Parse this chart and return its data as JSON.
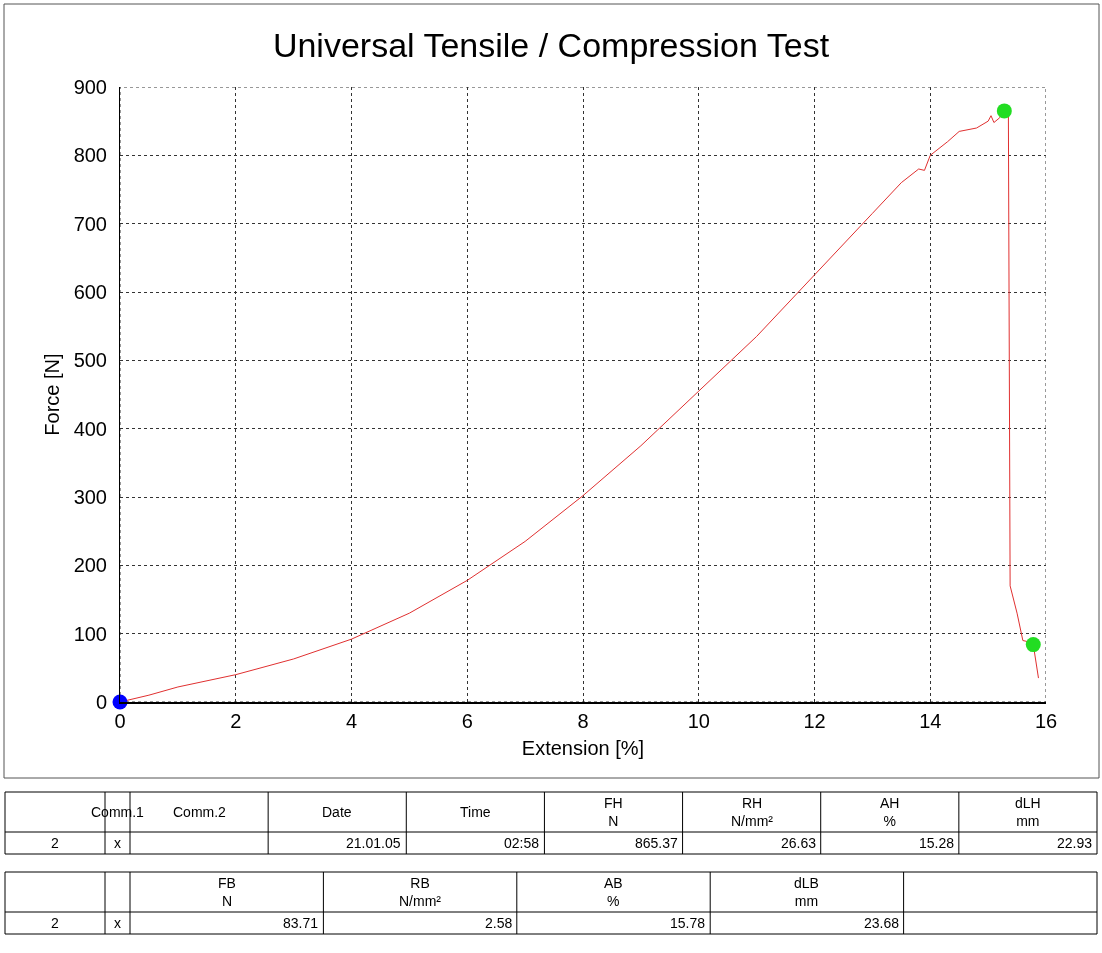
{
  "chart_data": {
    "type": "line",
    "title": "Universal Tensile / Compression Test",
    "xlabel": "Extension [%]",
    "ylabel": "Force [N]",
    "xlim": [
      0,
      16
    ],
    "xticks": [
      0,
      2,
      4,
      6,
      8,
      10,
      12,
      14,
      16
    ],
    "ylim": [
      0,
      900
    ],
    "yticks": [
      0,
      100,
      200,
      300,
      400,
      500,
      600,
      700,
      800,
      900
    ],
    "grid": true,
    "series": [
      {
        "color": "#e03030",
        "marker": "none",
        "x": [
          0,
          0.5,
          1,
          2,
          3,
          4,
          5,
          6,
          7,
          8,
          9,
          10,
          11,
          12,
          13,
          13.5,
          13.8,
          13.9,
          14,
          14.3,
          14.5,
          14.8,
          15,
          15.05,
          15.1,
          15.2,
          15.28,
          15.35,
          15.38,
          15.5,
          15.6,
          15.7,
          15.78,
          15.87
        ],
        "values": [
          0,
          10,
          22,
          40,
          63,
          92,
          130,
          178,
          235,
          302,
          375,
          455,
          535,
          625,
          715,
          760,
          780,
          778,
          800,
          820,
          835,
          840,
          850,
          858,
          848,
          855,
          865,
          862,
          170,
          130,
          90,
          88,
          84,
          35
        ]
      },
      {
        "type": "scatter",
        "color": "#0000ff",
        "marker": "circle",
        "x": [
          0
        ],
        "values": [
          0
        ]
      },
      {
        "type": "scatter",
        "color": "#22dd22",
        "marker": "circle",
        "x": [
          15.28,
          15.78
        ],
        "values": [
          865,
          84
        ]
      }
    ],
    "annotations": [
      "\tComm.1\tComm.2\tDate\tTime\tFH\nN\tRH\nN/mm²\tAH\n%\tdLH\nmm",
      "2\tx\t\t21.01.05\t02:58\t865.37\t26.63\t15.28\t22.93",
      "\t\tFB\nN\tRB\nN/mm²\tAB\n%\tdLB\nmm\t",
      "2\tx\t83.71\t2.58\t15.78\t23.68\t"
    ]
  }
}
